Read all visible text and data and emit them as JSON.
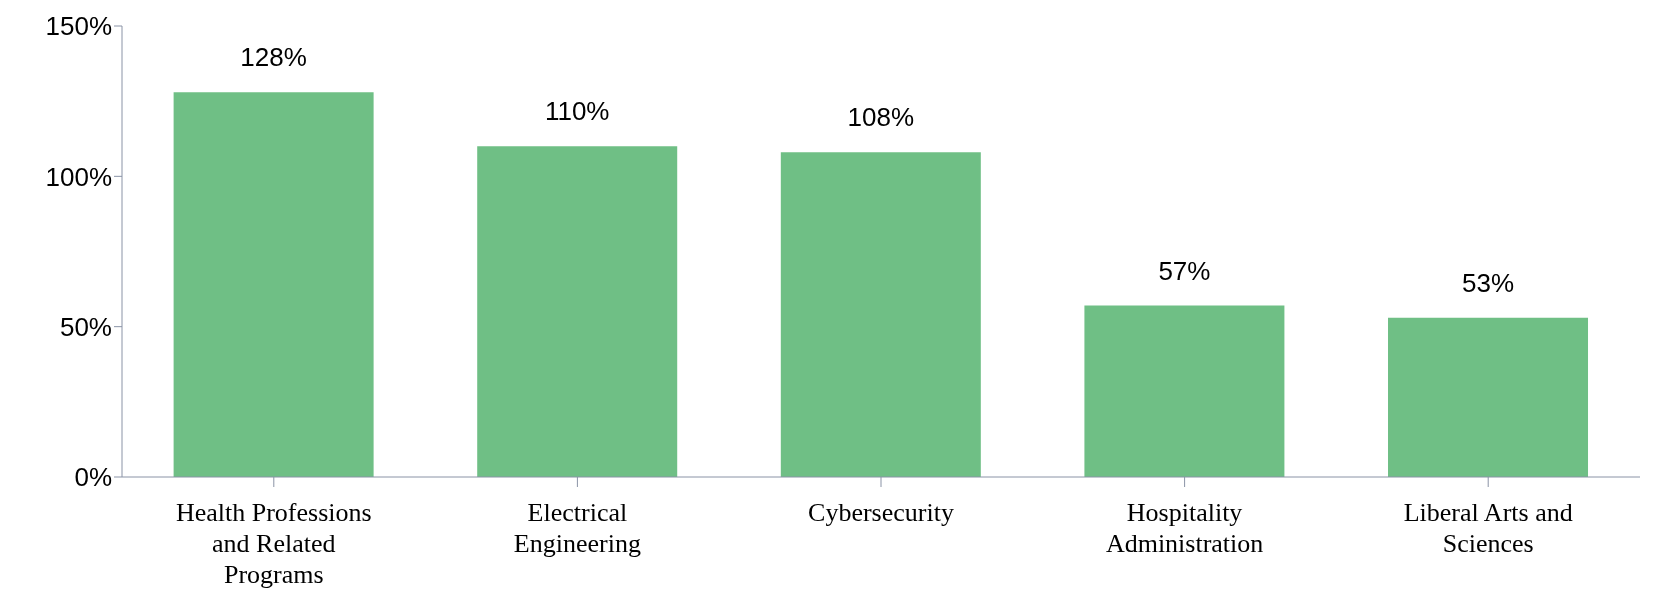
{
  "chart_data": {
    "type": "bar",
    "categories": [
      "Health Professions and Related Programs",
      "Electrical Engineering",
      "Cybersecurity",
      "Hospitality Administration",
      "Liberal Arts and Sciences"
    ],
    "values": [
      128,
      110,
      108,
      57,
      53
    ],
    "value_labels": [
      "128%",
      "110%",
      "108%",
      "57%",
      "53%"
    ],
    "color": "#6fbf85",
    "ylim": [
      0,
      150
    ],
    "yticks": [
      {
        "value": 0,
        "label": "0%"
      },
      {
        "value": 50,
        "label": "50%"
      },
      {
        "value": 100,
        "label": "100%"
      },
      {
        "value": 150,
        "label": "150%"
      }
    ],
    "grid": false
  }
}
